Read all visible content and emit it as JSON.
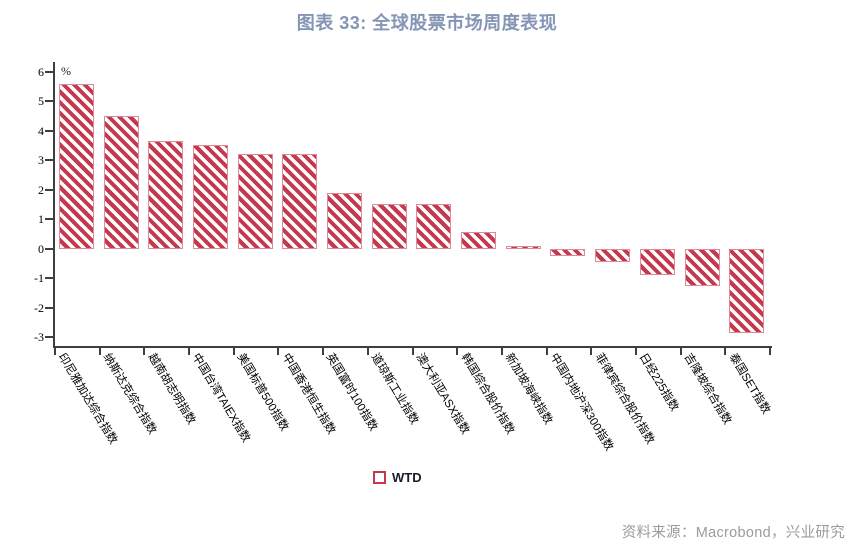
{
  "page": {
    "title": "图表 33: 全球股票市场周度表现",
    "source": "资料来源：Macrobond，兴业研究"
  },
  "chart_data": {
    "type": "bar",
    "title": "图表 33: 全球股票市场周度表现",
    "unit_label": "%",
    "categories": [
      "印尼雅加达综合指数",
      "纳斯达克综合指数",
      "越南胡志明指数",
      "中国台湾TAIEX指数",
      "美国标普500指数",
      "中国香港恒生指数",
      "英国富时100指数",
      "道琼斯工业指数",
      "澳大利亚ASX指数",
      "韩国综合股价指数",
      "新加坡海峡指数",
      "中国内地沪深300指数",
      "菲律宾综合股价指数",
      "日经225指数",
      "吉隆坡综合指数",
      "泰国SET指数"
    ],
    "series": [
      {
        "name": "WTD",
        "values": [
          5.6,
          4.5,
          3.65,
          3.5,
          3.2,
          3.2,
          1.9,
          1.5,
          1.5,
          0.55,
          0.1,
          -0.25,
          -0.45,
          -0.9,
          -1.25,
          -2.85
        ]
      }
    ],
    "yticks": [
      6,
      5,
      4,
      3,
      2,
      1,
      0,
      -1,
      -2,
      -3
    ],
    "ylim": [
      -3.3,
      6.35
    ],
    "grid": false,
    "legend_position": "bottom-center",
    "bar_style": {
      "hatch": "diagonal-down",
      "stripe_color": "#c4394e",
      "border_color": "#e08a99",
      "fill_color": "#ffffff"
    },
    "colors": {
      "title": "#8495b5",
      "axis": "#3f3f3f",
      "tick_label": "#000000",
      "source": "#9b9b9b"
    }
  }
}
